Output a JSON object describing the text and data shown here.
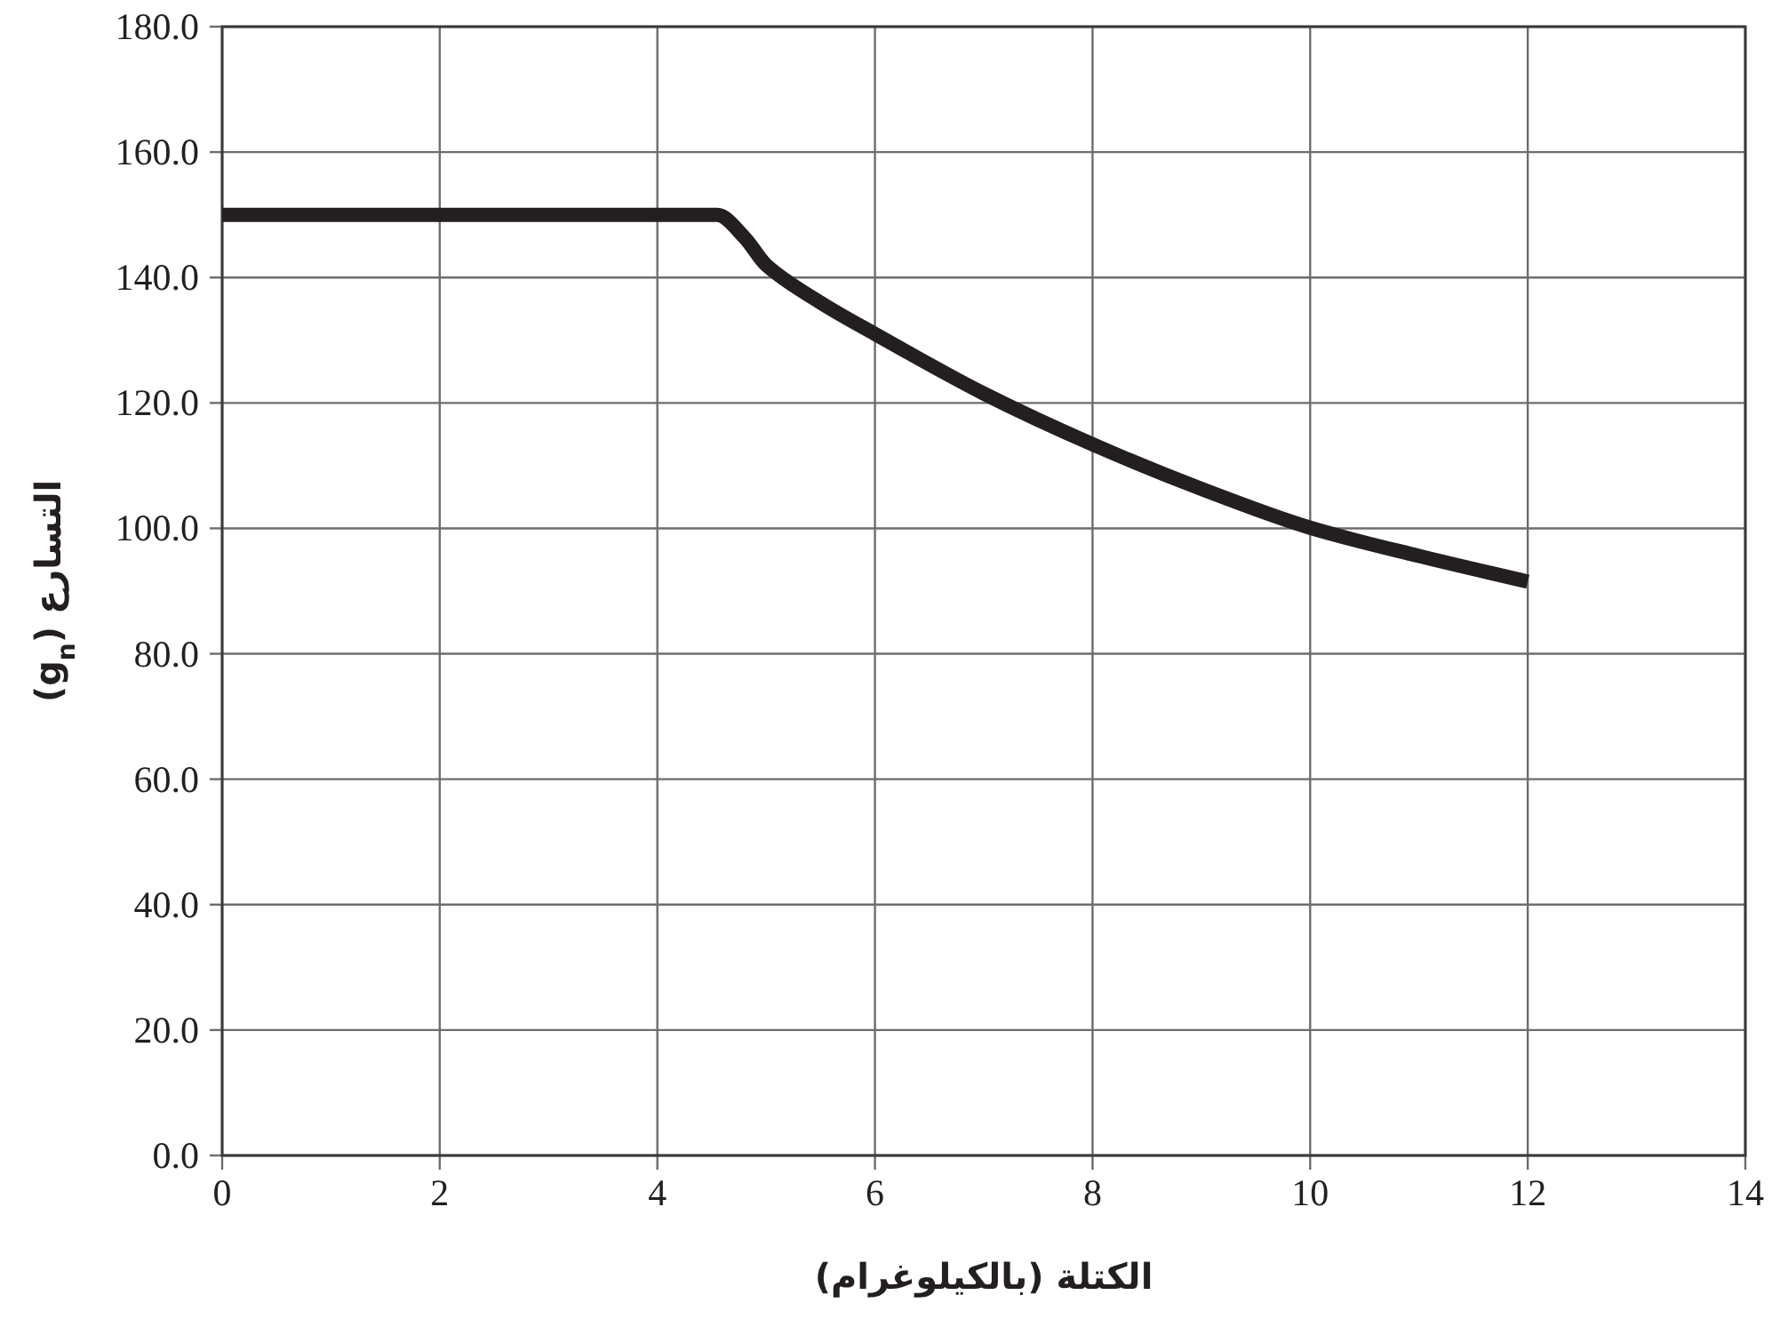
{
  "chart_data": {
    "type": "line",
    "xlabel": "الكتلة (بالكيلوغرام)",
    "ylabel": "التسارع (g$_{n}$)",
    "x": [
      0,
      4.55,
      4.8,
      5,
      5.5,
      6,
      7,
      8,
      9,
      10,
      11,
      12
    ],
    "series": [
      {
        "color": "#231f20",
        "values": [
          150,
          150,
          146.4,
          142,
          136,
          131,
          121.5,
          113.4,
          106.3,
          100.1,
          95.6,
          91.5
        ]
      }
    ],
    "xlim": [
      0,
      14
    ],
    "xticks": [
      0,
      2,
      4,
      6,
      8,
      10,
      12,
      14
    ],
    "ylim": [
      0,
      180
    ],
    "yticks": [
      {
        "value": 0,
        "label": "0.0"
      },
      {
        "value": 20,
        "label": "20.0"
      },
      {
        "value": 40,
        "label": "40.0"
      },
      {
        "value": 60,
        "label": "60.0"
      },
      {
        "value": 80,
        "label": "80.0"
      },
      {
        "value": 100,
        "label": "100.0"
      },
      {
        "value": 120,
        "label": "120.0"
      },
      {
        "value": 140,
        "label": "140.0"
      },
      {
        "value": 160,
        "label": "160.0"
      },
      {
        "value": 180,
        "label": "180.0"
      }
    ],
    "grid": true,
    "marker": "none",
    "line_style": "solid"
  }
}
